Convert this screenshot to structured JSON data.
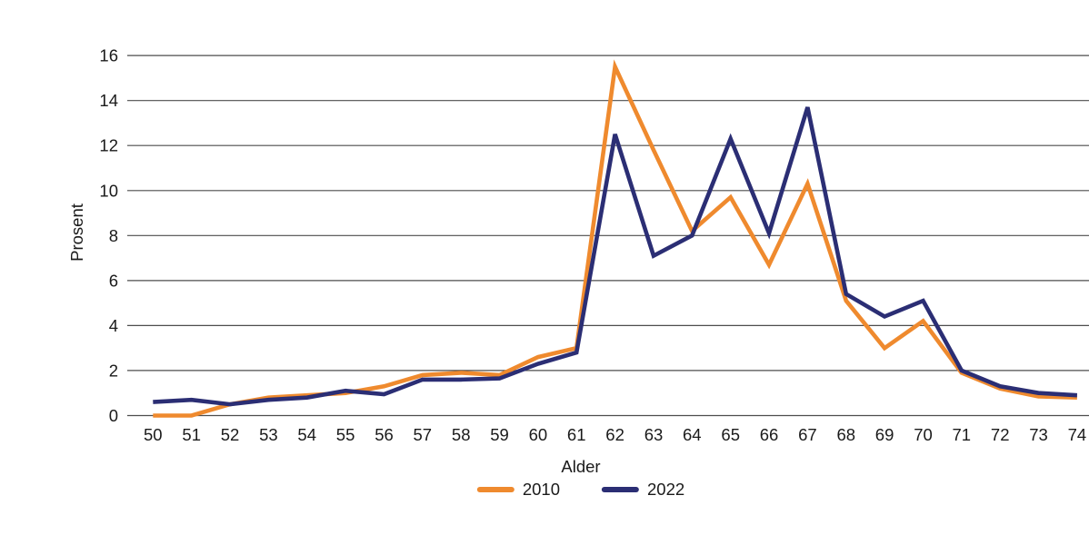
{
  "chart_data": {
    "type": "line",
    "title": "",
    "xlabel": "Alder",
    "ylabel": "Prosent",
    "x": [
      50,
      51,
      52,
      53,
      54,
      55,
      56,
      57,
      58,
      59,
      60,
      61,
      62,
      63,
      64,
      65,
      66,
      67,
      68,
      69,
      70,
      71,
      72,
      73,
      74
    ],
    "xlim": [
      50,
      74
    ],
    "ylim": [
      0,
      16
    ],
    "yticks": [
      0,
      2,
      4,
      6,
      8,
      10,
      12,
      14,
      16
    ],
    "grid": "horizontal",
    "legend_position": "bottom-center",
    "series": [
      {
        "name": "2010",
        "color": "#EF8A2E",
        "values": [
          0,
          0,
          0.5,
          0.8,
          0.9,
          1.0,
          1.3,
          1.8,
          1.9,
          1.8,
          2.6,
          3.0,
          15.5,
          11.8,
          8.2,
          9.7,
          6.7,
          10.3,
          5.1,
          3.0,
          4.2,
          1.9,
          1.2,
          0.85,
          0.8
        ]
      },
      {
        "name": "2022",
        "color": "#2B2E74",
        "values": [
          0.6,
          0.7,
          0.5,
          0.7,
          0.8,
          1.1,
          0.95,
          1.6,
          1.6,
          1.65,
          2.3,
          2.8,
          12.5,
          7.1,
          8.0,
          12.3,
          8.1,
          13.7,
          5.4,
          4.4,
          5.1,
          2.0,
          1.3,
          1.0,
          0.9
        ]
      }
    ],
    "gridline_color": "#4D4D4D",
    "axis_text_color": "#1A1A1A"
  }
}
